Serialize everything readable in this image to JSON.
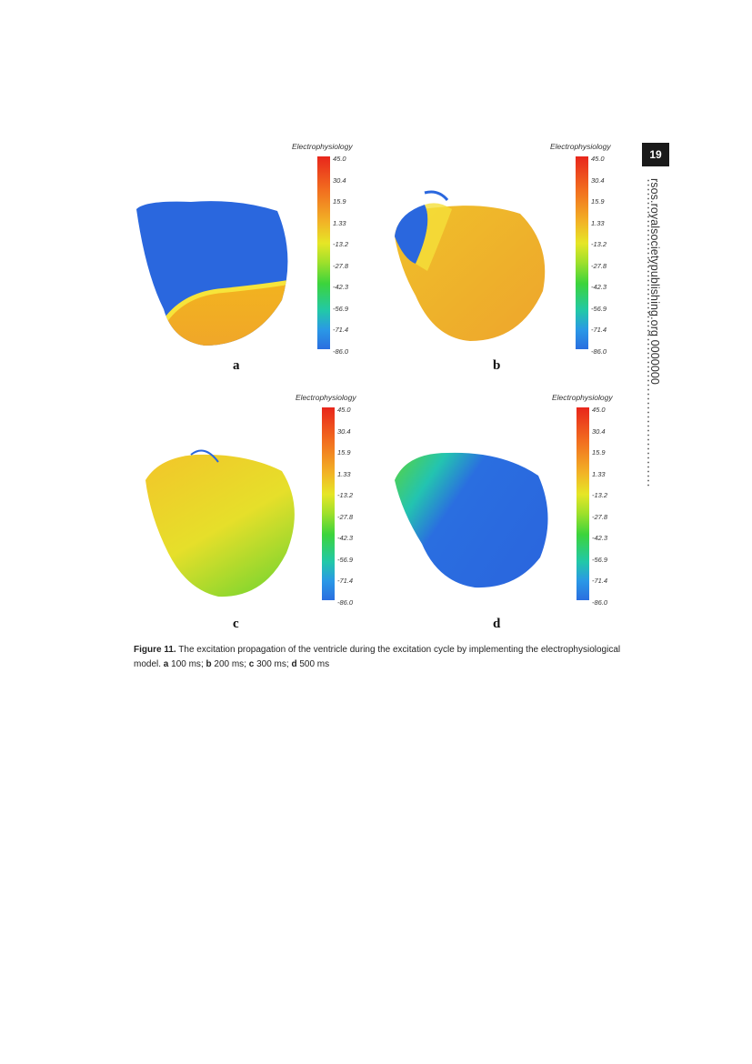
{
  "page_number": "19",
  "side_header": {
    "journal_url": "rsos.royalsocietypublishing.org",
    "article_number": "0000000"
  },
  "figure": {
    "colorbar": {
      "title": "Electrophysiology",
      "ticks": [
        "45.0",
        "30.4",
        "15.9",
        "1.33",
        "-13.2",
        "-27.8",
        "-42.3",
        "-56.9",
        "-71.4",
        "-86.0"
      ]
    },
    "panels": [
      {
        "label": "a",
        "time": "100 ms"
      },
      {
        "label": "b",
        "time": "200 ms"
      },
      {
        "label": "c",
        "time": "300 ms"
      },
      {
        "label": "d",
        "time": "500 ms"
      }
    ],
    "caption": {
      "label": "Figure 11.",
      "text": "The excitation propagation of the ventricle during the excitation cycle by implementing the electrophysiological model.",
      "items": [
        {
          "key": "a",
          "value": "100 ms"
        },
        {
          "key": "b",
          "value": "200 ms"
        },
        {
          "key": "c",
          "value": "300 ms"
        },
        {
          "key": "d",
          "value": "500 ms"
        }
      ]
    }
  }
}
